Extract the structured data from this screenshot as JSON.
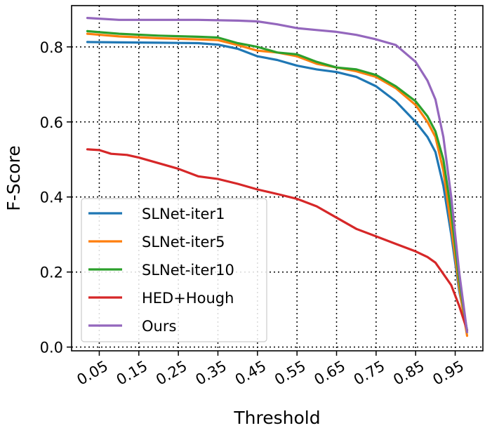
{
  "chart_data": {
    "type": "line",
    "title": "",
    "xlabel": "Threshold",
    "ylabel": "F-Score",
    "xlim": [
      -0.02,
      1.02
    ],
    "ylim": [
      -0.01,
      0.91
    ],
    "xticks": [
      0.05,
      0.15,
      0.25,
      0.35,
      0.45,
      0.55,
      0.65,
      0.75,
      0.85,
      0.95
    ],
    "xtick_labels": [
      "0.05",
      "0.15",
      "0.25",
      "0.35",
      "0.45",
      "0.55",
      "0.65",
      "0.75",
      "0.85",
      "0.95"
    ],
    "yticks": [
      0.0,
      0.2,
      0.4,
      0.6,
      0.8
    ],
    "ytick_labels": [
      "0.0",
      "0.2",
      "0.4",
      "0.6",
      "0.8"
    ],
    "grid": true,
    "legend_position": "lower-left",
    "series": [
      {
        "name": "SLNet-iter1",
        "color": "#1f77b4",
        "points": [
          [
            0.02,
            0.813
          ],
          [
            0.1,
            0.812
          ],
          [
            0.2,
            0.811
          ],
          [
            0.3,
            0.81
          ],
          [
            0.35,
            0.806
          ],
          [
            0.4,
            0.795
          ],
          [
            0.45,
            0.775
          ],
          [
            0.5,
            0.765
          ],
          [
            0.55,
            0.75
          ],
          [
            0.6,
            0.74
          ],
          [
            0.65,
            0.733
          ],
          [
            0.7,
            0.72
          ],
          [
            0.75,
            0.695
          ],
          [
            0.8,
            0.655
          ],
          [
            0.85,
            0.6
          ],
          [
            0.88,
            0.56
          ],
          [
            0.9,
            0.52
          ],
          [
            0.92,
            0.43
          ],
          [
            0.94,
            0.3
          ],
          [
            0.96,
            0.15
          ],
          [
            0.98,
            0.045
          ]
        ]
      },
      {
        "name": "SLNet-iter5",
        "color": "#ff7f0e",
        "points": [
          [
            0.02,
            0.835
          ],
          [
            0.1,
            0.828
          ],
          [
            0.2,
            0.823
          ],
          [
            0.3,
            0.82
          ],
          [
            0.35,
            0.818
          ],
          [
            0.4,
            0.805
          ],
          [
            0.45,
            0.79
          ],
          [
            0.5,
            0.785
          ],
          [
            0.55,
            0.775
          ],
          [
            0.6,
            0.755
          ],
          [
            0.65,
            0.745
          ],
          [
            0.7,
            0.735
          ],
          [
            0.75,
            0.72
          ],
          [
            0.8,
            0.69
          ],
          [
            0.85,
            0.645
          ],
          [
            0.88,
            0.6
          ],
          [
            0.9,
            0.56
          ],
          [
            0.92,
            0.47
          ],
          [
            0.94,
            0.32
          ],
          [
            0.96,
            0.16
          ],
          [
            0.98,
            0.03
          ]
        ]
      },
      {
        "name": "SLNet-iter10",
        "color": "#2ca02c",
        "points": [
          [
            0.02,
            0.842
          ],
          [
            0.1,
            0.835
          ],
          [
            0.2,
            0.83
          ],
          [
            0.3,
            0.827
          ],
          [
            0.35,
            0.825
          ],
          [
            0.4,
            0.81
          ],
          [
            0.45,
            0.8
          ],
          [
            0.5,
            0.785
          ],
          [
            0.55,
            0.78
          ],
          [
            0.6,
            0.76
          ],
          [
            0.65,
            0.745
          ],
          [
            0.7,
            0.74
          ],
          [
            0.75,
            0.725
          ],
          [
            0.8,
            0.695
          ],
          [
            0.85,
            0.655
          ],
          [
            0.88,
            0.615
          ],
          [
            0.9,
            0.575
          ],
          [
            0.92,
            0.5
          ],
          [
            0.94,
            0.36
          ],
          [
            0.96,
            0.18
          ],
          [
            0.98,
            0.04
          ]
        ]
      },
      {
        "name": "HED+Hough",
        "color": "#d62728",
        "points": [
          [
            0.02,
            0.527
          ],
          [
            0.05,
            0.525
          ],
          [
            0.08,
            0.515
          ],
          [
            0.12,
            0.512
          ],
          [
            0.15,
            0.505
          ],
          [
            0.2,
            0.49
          ],
          [
            0.25,
            0.475
          ],
          [
            0.3,
            0.455
          ],
          [
            0.35,
            0.448
          ],
          [
            0.4,
            0.435
          ],
          [
            0.45,
            0.42
          ],
          [
            0.5,
            0.408
          ],
          [
            0.55,
            0.395
          ],
          [
            0.6,
            0.375
          ],
          [
            0.65,
            0.345
          ],
          [
            0.7,
            0.315
          ],
          [
            0.75,
            0.295
          ],
          [
            0.8,
            0.275
          ],
          [
            0.85,
            0.255
          ],
          [
            0.88,
            0.24
          ],
          [
            0.9,
            0.225
          ],
          [
            0.92,
            0.195
          ],
          [
            0.94,
            0.165
          ],
          [
            0.96,
            0.11
          ],
          [
            0.98,
            0.045
          ]
        ]
      },
      {
        "name": "Ours",
        "color": "#9467bd",
        "points": [
          [
            0.02,
            0.877
          ],
          [
            0.1,
            0.872
          ],
          [
            0.2,
            0.872
          ],
          [
            0.3,
            0.872
          ],
          [
            0.4,
            0.87
          ],
          [
            0.45,
            0.868
          ],
          [
            0.5,
            0.86
          ],
          [
            0.55,
            0.85
          ],
          [
            0.6,
            0.845
          ],
          [
            0.65,
            0.84
          ],
          [
            0.7,
            0.832
          ],
          [
            0.75,
            0.82
          ],
          [
            0.8,
            0.805
          ],
          [
            0.85,
            0.76
          ],
          [
            0.88,
            0.71
          ],
          [
            0.9,
            0.66
          ],
          [
            0.92,
            0.56
          ],
          [
            0.94,
            0.4
          ],
          [
            0.96,
            0.2
          ],
          [
            0.98,
            0.04
          ]
        ]
      }
    ]
  }
}
